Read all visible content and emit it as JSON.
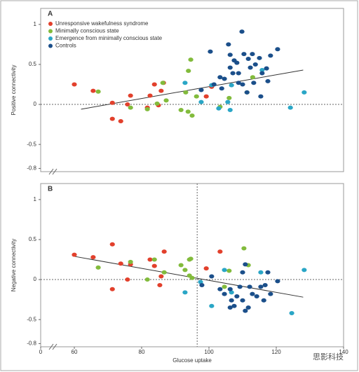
{
  "chart_data": [
    {
      "type": "scatter",
      "panel_label": "A",
      "ylabel": "Positive connectivity",
      "xlim": [
        50,
        140
      ],
      "ylim": [
        -0.84,
        1.2
      ],
      "yticks": [
        -0.8,
        -0.5,
        0,
        0.5,
        1
      ],
      "reference_lines": {
        "y": 0
      },
      "legend": "top-left",
      "trend": {
        "x": [
          62,
          128
        ],
        "values": [
          -0.06,
          0.43
        ],
        "color": "#333333"
      },
      "series": [
        {
          "name": "Unresponsive wakefulness syndrome",
          "color": "#e2402c",
          "x": [
            60,
            65.6,
            71.3,
            71.3,
            73.8,
            76.7,
            75.8,
            82.5,
            83.8,
            85,
            85.8,
            86.5,
            81.7,
            99.2,
            100.8
          ],
          "values": [
            0.25,
            0.17,
            0.02,
            -0.18,
            -0.21,
            0.11,
            0.0,
            0.11,
            0.25,
            -0.01,
            0.17,
            0.27,
            -0.04,
            0.1,
            0.22
          ]
        },
        {
          "name": "Minimally conscious state",
          "color": "#82bb3c",
          "x": [
            67.1,
            76.7,
            81.7,
            84.6,
            87.3,
            86.3,
            91.7,
            93.1,
            93.9,
            94.6,
            93.8,
            95,
            96.3,
            103.3,
            106,
            111.3,
            113
          ],
          "values": [
            0.16,
            -0.04,
            -0.06,
            0.01,
            0.05,
            0.27,
            -0.07,
            0.15,
            0.42,
            0.56,
            -0.09,
            -0.14,
            0.1,
            -0.03,
            0.08,
            0.15,
            0.34
          ]
        },
        {
          "name": "Emergence from minimally conscious state",
          "color": "#2aa6c6",
          "x": [
            92.9,
            97.7,
            100.8,
            105.6,
            106.3,
            106.7,
            115.8,
            124.2,
            128.3,
            102.9
          ],
          "values": [
            0.27,
            0.03,
            0.24,
            0.03,
            -0.07,
            0.24,
            0.43,
            -0.04,
            0.15,
            -0.05
          ]
        },
        {
          "name": "Controls",
          "color": "#1b4f8a",
          "x": [
            109.8,
            100.4,
            105.8,
            106.3,
            107.5,
            106.3,
            107.1,
            108.8,
            108.3,
            110.4,
            111.7,
            112.3,
            112.9,
            113.8,
            115,
            115.8,
            117.1,
            118.3,
            120.4,
            104.6,
            108.8,
            110,
            111.3,
            113.3,
            103.8,
            101.5,
            97.7,
            115.4,
            117.5,
            103.3
          ],
          "values": [
            0.91,
            0.66,
            0.75,
            0.62,
            0.55,
            0.46,
            0.39,
            0.39,
            0.52,
            0.63,
            0.57,
            0.46,
            0.63,
            0.5,
            0.58,
            0.39,
            0.45,
            0.61,
            0.69,
            0.32,
            0.27,
            0.25,
            0.15,
            0.27,
            0.2,
            0.25,
            0.18,
            0.1,
            0.29,
            0.34
          ]
        }
      ]
    },
    {
      "type": "scatter",
      "panel_label": "B",
      "ylabel": "Negative connectivity",
      "xlabel": "Glucose uptake",
      "xlim": [
        50,
        140
      ],
      "xticks": [
        {
          "value": 50,
          "label": "0"
        },
        60,
        80,
        100,
        120,
        140
      ],
      "ylim": [
        -0.84,
        1.2
      ],
      "yticks": [
        -0.8,
        -0.5,
        0,
        0.5,
        1
      ],
      "reference_lines": {
        "y": 0,
        "x": 96.5
      },
      "trend": {
        "x": [
          60,
          128
        ],
        "values": [
          0.29,
          -0.22
        ],
        "color": "#333333"
      },
      "series": [
        {
          "color": "#e2402c",
          "x": [
            60,
            65.6,
            71.3,
            71.3,
            73.8,
            75.8,
            76.7,
            82.5,
            83.8,
            85.4,
            86.7,
            85.8,
            99.2,
            103.3
          ],
          "values": [
            0.31,
            0.28,
            0.44,
            -0.12,
            0.2,
            0,
            0.19,
            0.25,
            0.17,
            -0.07,
            0.35,
            0.04,
            0.14,
            0.35
          ]
        },
        {
          "color": "#82bb3c",
          "x": [
            67.1,
            76.7,
            81.7,
            83.8,
            86.7,
            91.7,
            92.9,
            94.2,
            94.6,
            94.2,
            95,
            104.6,
            106,
            110.4,
            111.7
          ],
          "values": [
            0.15,
            0.22,
            0,
            0.25,
            0.09,
            0.18,
            0.12,
            0.25,
            0.26,
            0.05,
            0.02,
            -0.09,
            0.11,
            0.39,
            0.18
          ]
        },
        {
          "color": "#2aa6c6",
          "x": [
            92.9,
            97.5,
            100.8,
            104.6,
            115.4,
            124.6,
            128.3,
            106.7
          ],
          "values": [
            -0.16,
            -0.03,
            -0.33,
            0.12,
            0.09,
            -0.42,
            0.12,
            -0.16
          ]
        },
        {
          "color": "#1b4f8a",
          "x": [
            97.9,
            103.3,
            104.6,
            106.3,
            106.7,
            107.5,
            108.3,
            109.2,
            110,
            110.8,
            110,
            110.8,
            112.1,
            112.9,
            114.2,
            115.4,
            116.7,
            117.5,
            118.3,
            120.4,
            106.3,
            116.3,
            111.7,
            100.8
          ],
          "values": [
            -0.07,
            -0.12,
            -0.18,
            -0.12,
            -0.26,
            -0.33,
            -0.21,
            -0.09,
            -0.26,
            -0.39,
            0.09,
            0.19,
            -0.09,
            -0.18,
            -0.21,
            -0.09,
            -0.07,
            0.09,
            -0.18,
            -0.02,
            -0.35,
            -0.26,
            -0.35,
            0.04
          ]
        }
      ]
    }
  ],
  "watermark": "思影科技"
}
